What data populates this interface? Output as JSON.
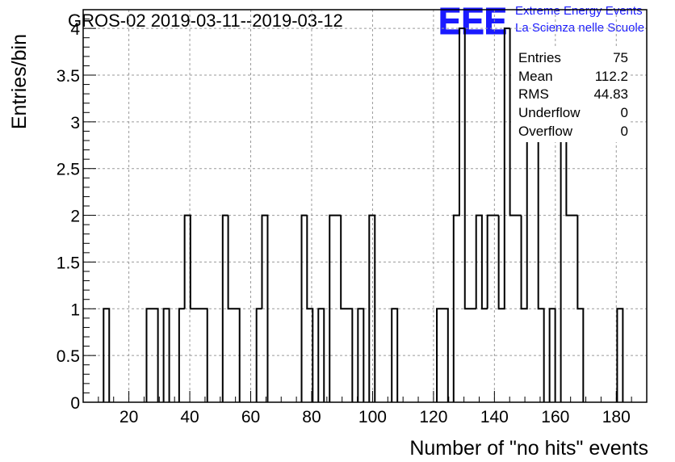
{
  "chart_data": {
    "type": "bar",
    "title": "GROS-02 2019-03-11--2019-03-12",
    "xlabel": "Number of \"no hits\" events",
    "ylabel": "Entries/bin",
    "xlim": [
      5,
      190
    ],
    "ylim": [
      0,
      4.2
    ],
    "bin_width": 1.85,
    "x_ticks": [
      20,
      40,
      60,
      80,
      100,
      120,
      140,
      160,
      180
    ],
    "y_ticks": [
      0,
      0.5,
      1,
      1.5,
      2,
      2.5,
      3,
      3.5,
      4
    ],
    "grid": true,
    "histogram_style": "step outline",
    "bins": [
      {
        "x": 11.7,
        "y": 1
      },
      {
        "x": 25.8,
        "y": 1
      },
      {
        "x": 27.7,
        "y": 1
      },
      {
        "x": 31.4,
        "y": 1
      },
      {
        "x": 36.5,
        "y": 1
      },
      {
        "x": 38.3,
        "y": 2
      },
      {
        "x": 40.2,
        "y": 1
      },
      {
        "x": 42.0,
        "y": 1
      },
      {
        "x": 43.9,
        "y": 1
      },
      {
        "x": 50.8,
        "y": 2
      },
      {
        "x": 52.6,
        "y": 1
      },
      {
        "x": 54.5,
        "y": 1
      },
      {
        "x": 61.9,
        "y": 1
      },
      {
        "x": 63.7,
        "y": 2
      },
      {
        "x": 76.7,
        "y": 2
      },
      {
        "x": 78.5,
        "y": 1
      },
      {
        "x": 82.2,
        "y": 1
      },
      {
        "x": 85.9,
        "y": 2
      },
      {
        "x": 87.8,
        "y": 2
      },
      {
        "x": 89.6,
        "y": 1
      },
      {
        "x": 91.5,
        "y": 1
      },
      {
        "x": 95.2,
        "y": 1
      },
      {
        "x": 98.9,
        "y": 2
      },
      {
        "x": 106.3,
        "y": 1
      },
      {
        "x": 121.1,
        "y": 1
      },
      {
        "x": 122.9,
        "y": 1
      },
      {
        "x": 126.6,
        "y": 2
      },
      {
        "x": 128.5,
        "y": 4
      },
      {
        "x": 130.3,
        "y": 1
      },
      {
        "x": 132.2,
        "y": 1
      },
      {
        "x": 134.0,
        "y": 2
      },
      {
        "x": 135.9,
        "y": 1
      },
      {
        "x": 137.7,
        "y": 2
      },
      {
        "x": 139.6,
        "y": 2
      },
      {
        "x": 141.4,
        "y": 1
      },
      {
        "x": 143.3,
        "y": 4
      },
      {
        "x": 145.1,
        "y": 2
      },
      {
        "x": 147.0,
        "y": 2
      },
      {
        "x": 148.8,
        "y": 1
      },
      {
        "x": 150.7,
        "y": 3
      },
      {
        "x": 152.5,
        "y": 3
      },
      {
        "x": 154.4,
        "y": 1
      },
      {
        "x": 158.1,
        "y": 1
      },
      {
        "x": 161.8,
        "y": 3
      },
      {
        "x": 163.6,
        "y": 2
      },
      {
        "x": 165.5,
        "y": 2
      },
      {
        "x": 167.3,
        "y": 1
      },
      {
        "x": 180.3,
        "y": 1
      }
    ],
    "stats_box": {
      "entries_label": "Entries",
      "entries": "75",
      "mean_label": "Mean",
      "mean": "112.2",
      "rms_label": "RMS",
      "rms": "44.83",
      "underflow_label": "Underflow",
      "underflow": "0",
      "overflow_label": "Overflow",
      "overflow": "0"
    },
    "line_color": "#000000",
    "grid_color": "#9a9a9a"
  },
  "logo": {
    "mark": "EEE",
    "line1": "Extreme Energy Events",
    "line2": "La Scienza nelle Scuole",
    "color": "#1a1aff"
  }
}
